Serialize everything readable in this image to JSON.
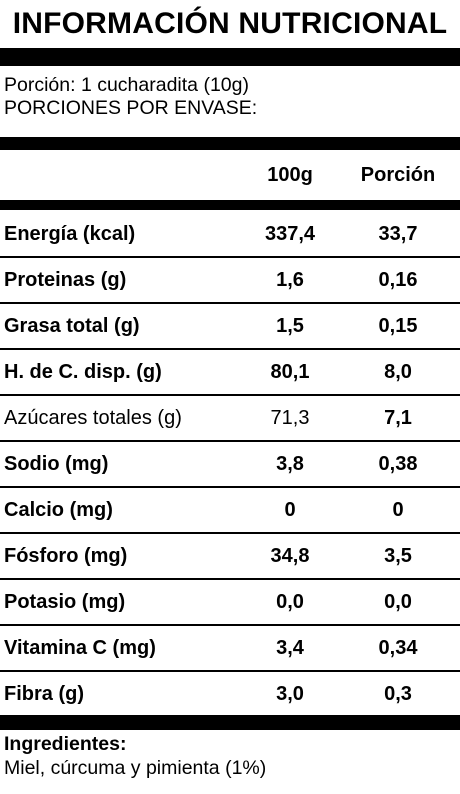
{
  "title": "INFORMACIÓN NUTRICIONAL",
  "serving": {
    "portion": "Porción: 1 cucharadita (10g)",
    "per_package": "PORCIONES POR ENVASE:"
  },
  "header": {
    "col1": "100g",
    "col2": "Porción"
  },
  "rows": [
    {
      "label": "Energía (kcal)",
      "per100": "337,4",
      "portion": "33,7"
    },
    {
      "label": "Proteinas (g)",
      "per100": "1,6",
      "portion": "0,16"
    },
    {
      "label": "Grasa total (g)",
      "per100": "1,5",
      "portion": "0,15"
    },
    {
      "label": "H. de C. disp. (g)",
      "per100": "80,1",
      "portion": "8,0"
    },
    {
      "label": "Azúcares totales (g)",
      "per100": "71,3",
      "portion": "7,1"
    },
    {
      "label": "Sodio (mg)",
      "per100": "3,8",
      "portion": "0,38"
    },
    {
      "label": "Calcio (mg)",
      "per100": "0",
      "portion": "0"
    },
    {
      "label": "Fósforo (mg)",
      "per100": "34,8",
      "portion": "3,5"
    },
    {
      "label": "Potasio (mg)",
      "per100": "0,0",
      "portion": "0,0"
    },
    {
      "label": "Vitamina C (mg)",
      "per100": "3,4",
      "portion": "0,34"
    },
    {
      "label": "Fibra (g)",
      "per100": "3,0",
      "portion": "0,3"
    }
  ],
  "ingredients": {
    "title": "Ingredientes:",
    "text": "Miel, cúrcuma y pimienta (1%)"
  }
}
